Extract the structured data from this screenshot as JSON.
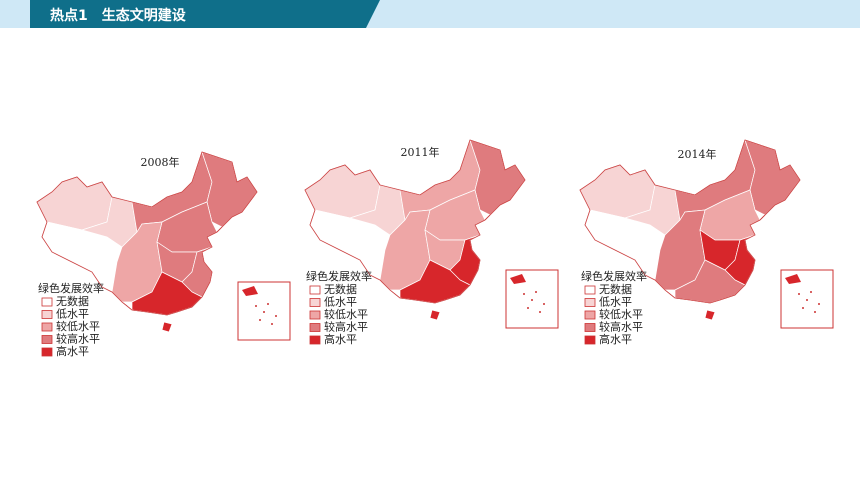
{
  "header": {
    "label": "热点1",
    "title": "生态文明建设"
  },
  "maps": [
    {
      "year": "2008年",
      "legend": {
        "title": "绿色发展效率",
        "items": [
          "无数据",
          "低水平",
          "较低水平",
          "较高水平",
          "高水平"
        ]
      }
    },
    {
      "year": "2011年",
      "legend": {
        "title": "绿色发展效率",
        "items": [
          "无数据",
          "低水平",
          "较低水平",
          "较高水平",
          "高水平"
        ]
      }
    },
    {
      "year": "2014年",
      "legend": {
        "title": "绿色发展效率",
        "items": [
          "无数据",
          "低水平",
          "较低水平",
          "较高水平",
          "高水平"
        ]
      }
    }
  ]
}
